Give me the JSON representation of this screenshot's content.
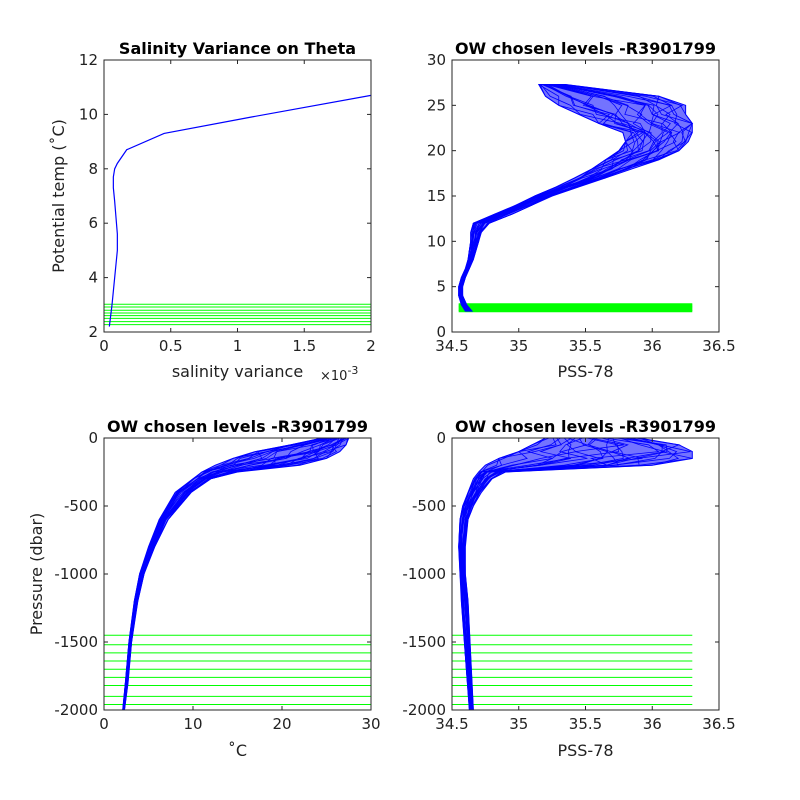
{
  "figure": {
    "background": "#ffffff",
    "profile_color": "#0000ff",
    "level_color": "#00ff00"
  },
  "chart_data": [
    {
      "type": "line",
      "title": "Salinity Variance on Theta",
      "xlabel": "salinity variance",
      "x_multiplier": "×10",
      "x_multiplier_exp": "-3",
      "ylabel": "Potential temp (˚C)",
      "xlim": [
        0,
        2
      ],
      "ylim": [
        2,
        12
      ],
      "xticks": [
        0,
        0.5,
        1,
        1.5,
        2
      ],
      "xtick_labels": [
        "0",
        "0.5",
        "1",
        "1.5",
        "2"
      ],
      "yticks": [
        2,
        4,
        6,
        8,
        10,
        12
      ],
      "ytick_labels": [
        "2",
        "4",
        "6",
        "8",
        "10",
        "12"
      ],
      "series": [
        {
          "x": [
            0.04,
            0.05,
            0.06,
            0.07,
            0.08,
            0.09,
            0.1,
            0.1,
            0.09,
            0.08,
            0.07,
            0.07,
            0.08,
            0.1,
            0.17,
            0.45,
            1.1,
            2.0
          ],
          "y": [
            2.2,
            2.6,
            3.0,
            3.5,
            4.0,
            4.5,
            5.0,
            5.6,
            6.2,
            6.8,
            7.3,
            7.7,
            8.0,
            8.2,
            8.7,
            9.3,
            9.9,
            10.7
          ]
        }
      ],
      "levels": [
        2.27,
        2.38,
        2.5,
        2.6,
        2.7,
        2.8,
        2.92,
        3.02
      ],
      "grid": false
    },
    {
      "type": "line",
      "title": "OW chosen levels -R3901799",
      "xlabel": "PSS-78",
      "ylabel": "",
      "xlim": [
        34.5,
        36.5
      ],
      "ylim": [
        0,
        30
      ],
      "xticks": [
        34.5,
        35,
        35.5,
        36,
        36.5
      ],
      "xtick_labels": [
        "34.5",
        "35",
        "35.5",
        "36",
        "36.5"
      ],
      "yticks": [
        0,
        5,
        10,
        15,
        20,
        25,
        30
      ],
      "ytick_labels": [
        "0",
        "5",
        "10",
        "15",
        "20",
        "25",
        "30"
      ],
      "envelope": [
        {
          "y": 2.3,
          "x_min": 34.6,
          "x_max": 34.65
        },
        {
          "y": 3.0,
          "x_min": 34.57,
          "x_max": 34.61
        },
        {
          "y": 4.0,
          "x_min": 34.55,
          "x_max": 34.58
        },
        {
          "y": 5.0,
          "x_min": 34.55,
          "x_max": 34.58
        },
        {
          "y": 6.0,
          "x_min": 34.57,
          "x_max": 34.6
        },
        {
          "y": 7.0,
          "x_min": 34.6,
          "x_max": 34.63
        },
        {
          "y": 8.0,
          "x_min": 34.62,
          "x_max": 34.66
        },
        {
          "y": 9.0,
          "x_min": 34.63,
          "x_max": 34.68
        },
        {
          "y": 10.0,
          "x_min": 34.64,
          "x_max": 34.7
        },
        {
          "y": 11.0,
          "x_min": 34.64,
          "x_max": 34.72
        },
        {
          "y": 12.0,
          "x_min": 34.66,
          "x_max": 34.78
        },
        {
          "y": 13.0,
          "x_min": 34.82,
          "x_max": 34.95
        },
        {
          "y": 14.0,
          "x_min": 34.98,
          "x_max": 35.1
        },
        {
          "y": 15.0,
          "x_min": 35.12,
          "x_max": 35.25
        },
        {
          "y": 16.0,
          "x_min": 35.28,
          "x_max": 35.45
        },
        {
          "y": 17.0,
          "x_min": 35.42,
          "x_max": 35.65
        },
        {
          "y": 18.0,
          "x_min": 35.55,
          "x_max": 35.85
        },
        {
          "y": 19.0,
          "x_min": 35.65,
          "x_max": 36.05
        },
        {
          "y": 20.0,
          "x_min": 35.75,
          "x_max": 36.2
        },
        {
          "y": 21.0,
          "x_min": 35.8,
          "x_max": 36.27
        },
        {
          "y": 22.0,
          "x_min": 35.78,
          "x_max": 36.3
        },
        {
          "y": 23.0,
          "x_min": 35.6,
          "x_max": 36.3
        },
        {
          "y": 24.0,
          "x_min": 35.45,
          "x_max": 36.25
        },
        {
          "y": 25.0,
          "x_min": 35.3,
          "x_max": 36.25
        },
        {
          "y": 26.0,
          "x_min": 35.2,
          "x_max": 36.05
        },
        {
          "y": 27.3,
          "x_min": 35.15,
          "x_max": 35.35
        }
      ],
      "levels": [
        2.3,
        2.45,
        2.6,
        2.75,
        2.9,
        3.05
      ],
      "grid": false
    },
    {
      "type": "line",
      "title": "OW chosen levels -R3901799",
      "xlabel": "˚C",
      "ylabel": "Pressure (dbar)",
      "xlim": [
        0,
        30
      ],
      "ylim": [
        -2000,
        0
      ],
      "xticks": [
        0,
        10,
        20,
        30
      ],
      "xtick_labels": [
        "0",
        "10",
        "20",
        "30"
      ],
      "yticks": [
        -2000,
        -1500,
        -1000,
        -500,
        0
      ],
      "ytick_labels": [
        "-2000",
        "-1500",
        "-1000",
        "-500",
        "0"
      ],
      "envelope": [
        {
          "y": -2000,
          "x_min": 2.1,
          "x_max": 2.3
        },
        {
          "y": -1800,
          "x_min": 2.4,
          "x_max": 2.7
        },
        {
          "y": -1500,
          "x_min": 2.8,
          "x_max": 3.1
        },
        {
          "y": -1200,
          "x_min": 3.4,
          "x_max": 3.8
        },
        {
          "y": -1000,
          "x_min": 4.0,
          "x_max": 4.5
        },
        {
          "y": -800,
          "x_min": 5.0,
          "x_max": 5.7
        },
        {
          "y": -600,
          "x_min": 6.2,
          "x_max": 7.2
        },
        {
          "y": -400,
          "x_min": 8.0,
          "x_max": 9.8
        },
        {
          "y": -300,
          "x_min": 10.0,
          "x_max": 12.0
        },
        {
          "y": -250,
          "x_min": 11.0,
          "x_max": 15.0
        },
        {
          "y": -200,
          "x_min": 12.5,
          "x_max": 22.0
        },
        {
          "y": -150,
          "x_min": 14.5,
          "x_max": 25.0
        },
        {
          "y": -100,
          "x_min": 17.0,
          "x_max": 26.5
        },
        {
          "y": -50,
          "x_min": 21.0,
          "x_max": 27.2
        },
        {
          "y": 0,
          "x_min": 24.5,
          "x_max": 27.5
        }
      ],
      "levels": [
        -1450,
        -1520,
        -1580,
        -1640,
        -1700,
        -1760,
        -1820,
        -1900,
        -1960
      ],
      "grid": false
    },
    {
      "type": "line",
      "title": "OW chosen levels -R3901799",
      "xlabel": "PSS-78",
      "ylabel": "",
      "xlim": [
        34.5,
        36.5
      ],
      "ylim": [
        -2000,
        0
      ],
      "xticks": [
        34.5,
        35,
        35.5,
        36,
        36.5
      ],
      "xtick_labels": [
        "34.5",
        "35",
        "35.5",
        "36",
        "36.5"
      ],
      "yticks": [
        -2000,
        -1500,
        -1000,
        -500,
        0
      ],
      "ytick_labels": [
        "-2000",
        "-1500",
        "-1000",
        "-500",
        "0"
      ],
      "envelope": [
        {
          "y": -2000,
          "x_min": 34.63,
          "x_max": 34.66
        },
        {
          "y": -1600,
          "x_min": 34.6,
          "x_max": 34.64
        },
        {
          "y": -1200,
          "x_min": 34.57,
          "x_max": 34.62
        },
        {
          "y": -1000,
          "x_min": 34.56,
          "x_max": 34.6
        },
        {
          "y": -800,
          "x_min": 34.55,
          "x_max": 34.6
        },
        {
          "y": -600,
          "x_min": 34.56,
          "x_max": 34.62
        },
        {
          "y": -500,
          "x_min": 34.58,
          "x_max": 34.66
        },
        {
          "y": -400,
          "x_min": 34.62,
          "x_max": 34.72
        },
        {
          "y": -300,
          "x_min": 34.66,
          "x_max": 34.8
        },
        {
          "y": -250,
          "x_min": 34.7,
          "x_max": 34.9
        },
        {
          "y": -200,
          "x_min": 34.75,
          "x_max": 36.0
        },
        {
          "y": -150,
          "x_min": 34.85,
          "x_max": 36.3
        },
        {
          "y": -100,
          "x_min": 35.0,
          "x_max": 36.3
        },
        {
          "y": -50,
          "x_min": 35.1,
          "x_max": 36.2
        },
        {
          "y": 0,
          "x_min": 35.2,
          "x_max": 35.9
        }
      ],
      "levels": [
        -1450,
        -1520,
        -1580,
        -1640,
        -1700,
        -1760,
        -1820,
        -1900,
        -1960
      ],
      "grid": false
    }
  ]
}
